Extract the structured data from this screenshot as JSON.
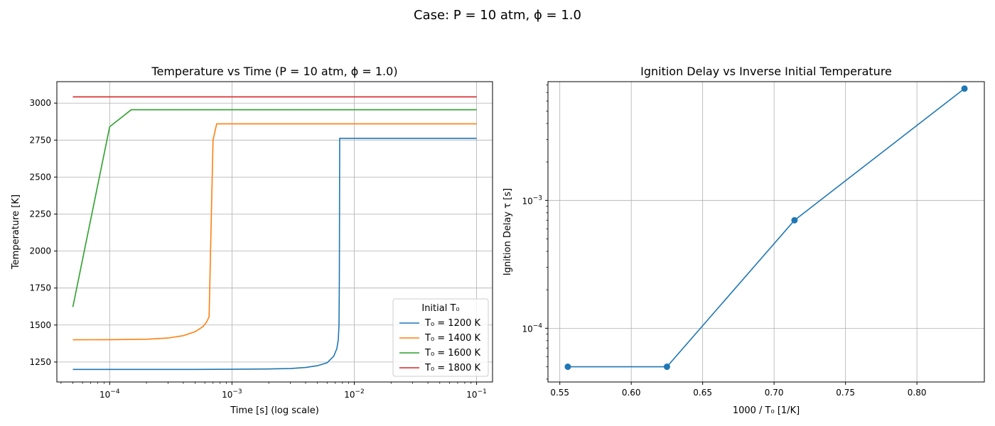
{
  "figure": {
    "suptitle": "Case: P = 10 atm, ϕ = 1.0"
  },
  "chart_data": [
    {
      "type": "line",
      "title": "Temperature vs Time (P = 10 atm, ϕ = 1.0)",
      "xlabel": "Time [s] (log scale)",
      "ylabel": "Temperature [K]",
      "xscale": "log",
      "xlim": [
        3.7e-05,
        0.135
      ],
      "ylim": [
        1115,
        3145
      ],
      "xticks": [
        {
          "value": 0.0001,
          "base": "10",
          "exp": "−4"
        },
        {
          "value": 0.001,
          "base": "10",
          "exp": "−3"
        },
        {
          "value": 0.01,
          "base": "10",
          "exp": "−2"
        },
        {
          "value": 0.1,
          "base": "10",
          "exp": "−1"
        }
      ],
      "yticks": [
        1250,
        1500,
        1750,
        2000,
        2250,
        2500,
        2750,
        3000
      ],
      "ytick_labels": [
        "1250",
        "1500",
        "1750",
        "2000",
        "2250",
        "2500",
        "2750",
        "3000"
      ],
      "grid": true,
      "legend": {
        "title": "Initial T₀",
        "placement": "bottom-right"
      },
      "series": [
        {
          "name": "T₀ = 1200 K",
          "color": "#1f77b4",
          "points": [
            [
              5e-05,
              1200
            ],
            [
              0.0001,
              1200
            ],
            [
              0.0005,
              1200
            ],
            [
              0.001,
              1201
            ],
            [
              0.002,
              1203
            ],
            [
              0.003,
              1206
            ],
            [
              0.004,
              1213
            ],
            [
              0.005,
              1225
            ],
            [
              0.006,
              1245
            ],
            [
              0.0068,
              1290
            ],
            [
              0.0072,
              1340
            ],
            [
              0.0074,
              1400
            ],
            [
              0.0075,
              1500
            ],
            [
              0.00755,
              1800
            ],
            [
              0.0076,
              2762
            ],
            [
              0.01,
              2762
            ],
            [
              0.1,
              2762
            ]
          ]
        },
        {
          "name": "T₀ = 1400 K",
          "color": "#ff7f0e",
          "points": [
            [
              5e-05,
              1400
            ],
            [
              0.0001,
              1401
            ],
            [
              0.0002,
              1404
            ],
            [
              0.0003,
              1412
            ],
            [
              0.0004,
              1428
            ],
            [
              0.0005,
              1455
            ],
            [
              0.00058,
              1490
            ],
            [
              0.00062,
              1520
            ],
            [
              0.00065,
              1555
            ],
            [
              0.0007,
              2750
            ],
            [
              0.00075,
              2860
            ],
            [
              0.001,
              2860
            ],
            [
              0.01,
              2860
            ],
            [
              0.1,
              2860
            ]
          ]
        },
        {
          "name": "T₀ = 1600 K",
          "color": "#2ca02c",
          "points": [
            [
              5e-05,
              1622
            ],
            [
              0.0001,
              2840
            ],
            [
              0.00015,
              2955
            ],
            [
              0.001,
              2955
            ],
            [
              0.01,
              2955
            ],
            [
              0.1,
              2955
            ]
          ]
        },
        {
          "name": "T₀ = 1800 K",
          "color": "#d62728",
          "points": [
            [
              5e-05,
              3042
            ],
            [
              0.0001,
              3042
            ],
            [
              0.001,
              3042
            ],
            [
              0.01,
              3042
            ],
            [
              0.1,
              3042
            ]
          ]
        }
      ]
    },
    {
      "type": "line",
      "title": "Ignition Delay vs Inverse Initial Temperature",
      "xlabel": "1000 / T₀ [1/K]",
      "ylabel": "Ignition Delay τ [s]",
      "yscale": "log",
      "xlim": [
        0.5417,
        0.8472
      ],
      "ylim": [
        3.8e-05,
        0.0085
      ],
      "xticks": [
        0.55,
        0.6,
        0.65,
        0.7,
        0.75,
        0.8
      ],
      "xtick_labels": [
        "0.55",
        "0.60",
        "0.65",
        "0.70",
        "0.75",
        "0.80"
      ],
      "yticks": [
        {
          "value": 0.0001,
          "base": "10",
          "exp": "−4"
        },
        {
          "value": 0.001,
          "base": "10",
          "exp": "−3"
        }
      ],
      "grid": true,
      "series": [
        {
          "color": "#1f77b4",
          "marker": "circle",
          "x": [
            0.5556,
            0.625,
            0.7143,
            0.8333
          ],
          "y": [
            5e-05,
            5e-05,
            0.0007,
            0.0075
          ]
        }
      ]
    }
  ]
}
